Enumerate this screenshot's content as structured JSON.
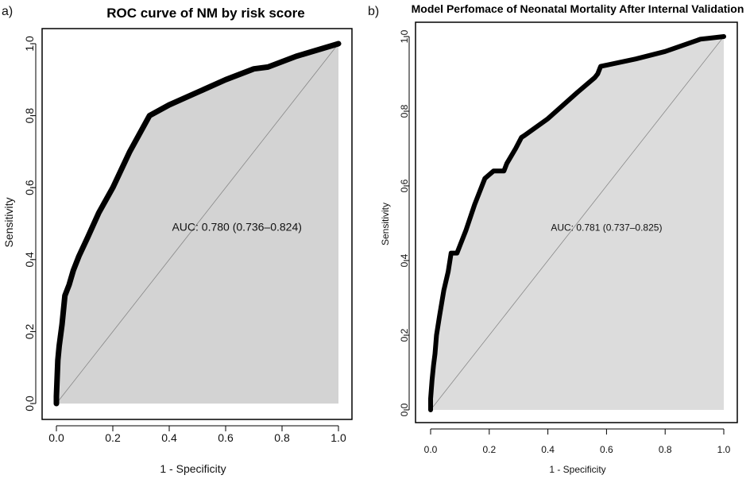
{
  "chart_data": [
    {
      "type": "line",
      "panel_label": "a)",
      "title": "ROC curve of NM  by risk score",
      "xlabel": "1 - Specificity",
      "ylabel": "Sensitivity",
      "xlim": [
        0,
        1
      ],
      "ylim": [
        0,
        1
      ],
      "xticks": [
        "0.0",
        "0.2",
        "0.4",
        "0.6",
        "0.8",
        "1.0"
      ],
      "yticks": [
        "0.0",
        "0.2",
        "0.4",
        "0.6",
        "0.8",
        "1.0"
      ],
      "annotation": "AUC: 0.780 (0.736–0.824)",
      "annotation_pos": [
        0.64,
        0.48
      ],
      "fill_color": "#d3d3d3",
      "line_color": "#000000",
      "diagonal": true,
      "series": [
        {
          "name": "ROC",
          "x": [
            0.0,
            0.0,
            0.005,
            0.01,
            0.02,
            0.03,
            0.045,
            0.06,
            0.08,
            0.11,
            0.15,
            0.2,
            0.26,
            0.33,
            0.4,
            0.5,
            0.6,
            0.7,
            0.75,
            0.85,
            1.0
          ],
          "y": [
            0.0,
            0.02,
            0.12,
            0.16,
            0.22,
            0.3,
            0.33,
            0.37,
            0.41,
            0.46,
            0.53,
            0.6,
            0.7,
            0.8,
            0.83,
            0.865,
            0.9,
            0.93,
            0.935,
            0.965,
            1.0
          ]
        }
      ]
    },
    {
      "type": "line",
      "panel_label": "b)",
      "title": "Model Perfomace of Neonatal Mortality After Internal Validation",
      "xlabel": "1 - Specificity",
      "ylabel": "Sensitivity",
      "xlim": [
        0,
        1
      ],
      "ylim": [
        0,
        1
      ],
      "xticks": [
        "0.0",
        "0.2",
        "0.4",
        "0.6",
        "0.8",
        "1.0"
      ],
      "yticks": [
        "0.0",
        "0.2",
        "0.4",
        "0.6",
        "0.8",
        "1.0"
      ],
      "annotation": "AUC: 0.781 (0.737–0.825)",
      "annotation_pos": [
        0.6,
        0.48
      ],
      "fill_color": "#dcdcdc",
      "line_color": "#000000",
      "diagonal": true,
      "series": [
        {
          "name": "ROC",
          "x": [
            0.0,
            0.0,
            0.005,
            0.01,
            0.015,
            0.02,
            0.03,
            0.045,
            0.06,
            0.07,
            0.09,
            0.1,
            0.12,
            0.15,
            0.185,
            0.2,
            0.215,
            0.25,
            0.26,
            0.29,
            0.31,
            0.32,
            0.4,
            0.5,
            0.56,
            0.57,
            0.58,
            0.7,
            0.8,
            0.91,
            0.92,
            1.0
          ],
          "y": [
            0.0,
            0.03,
            0.08,
            0.12,
            0.15,
            0.2,
            0.25,
            0.32,
            0.37,
            0.42,
            0.42,
            0.44,
            0.48,
            0.55,
            0.62,
            0.63,
            0.64,
            0.64,
            0.66,
            0.7,
            0.73,
            0.735,
            0.78,
            0.85,
            0.89,
            0.9,
            0.92,
            0.94,
            0.96,
            0.99,
            0.993,
            1.0
          ]
        }
      ]
    }
  ]
}
